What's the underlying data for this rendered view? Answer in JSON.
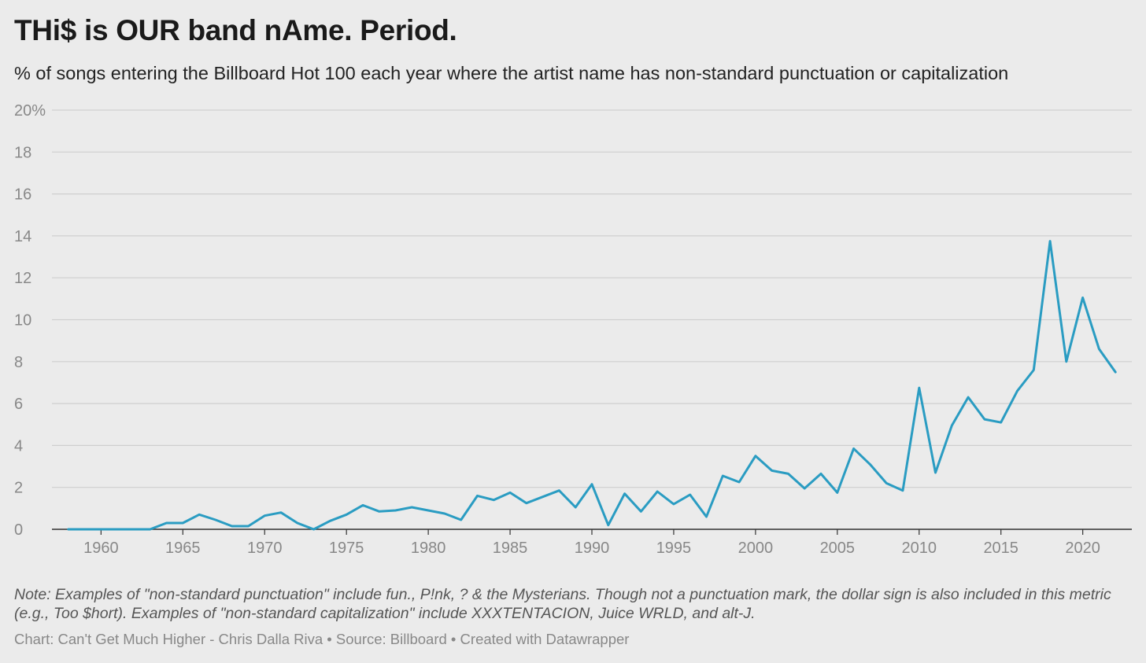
{
  "title": "THi$ is OUR band nAme. Period.",
  "subtitle": "% of songs entering the Billboard Hot 100 each year where the artist name has non-standard punctuation or capitalization",
  "note": "Note: Examples of \"non-standard punctuation\" include fun., P!nk, ? & the Mysterians. Though not a punctuation mark, the dollar sign is also included in this metric (e.g., Too $hort). Examples of \"non-standard capitalization\" include XXXTENTACION, Juice WRLD, and alt-J.",
  "credits": "Chart: Can't Get Much Higher - Chris Dalla Riva • Source: Billboard • Created with Datawrapper",
  "colors": {
    "background": "#ebebeb",
    "line": "#2a9cc2",
    "grid": "#cfcfcf",
    "baseline": "#333333",
    "tick_text": "#888888"
  },
  "chart_data": {
    "type": "line",
    "xlim": [
      1957,
      2023
    ],
    "ylim": [
      0,
      20
    ],
    "grid": true,
    "x_ticks": [
      1960,
      1965,
      1970,
      1975,
      1980,
      1985,
      1990,
      1995,
      2000,
      2005,
      2010,
      2015,
      2020
    ],
    "x_tick_labels": [
      "1960",
      "1965",
      "1970",
      "1975",
      "1980",
      "1985",
      "1990",
      "1995",
      "2000",
      "2005",
      "2010",
      "2015",
      "2020"
    ],
    "y_ticks": [
      0,
      2,
      4,
      6,
      8,
      10,
      12,
      14,
      16,
      18,
      20
    ],
    "y_tick_labels": [
      "0",
      "2",
      "4",
      "6",
      "8",
      "10",
      "12",
      "14",
      "16",
      "18",
      "20%"
    ],
    "x": [
      1958,
      1959,
      1960,
      1961,
      1962,
      1963,
      1964,
      1965,
      1966,
      1967,
      1968,
      1969,
      1970,
      1971,
      1972,
      1973,
      1974,
      1975,
      1976,
      1977,
      1978,
      1979,
      1980,
      1981,
      1982,
      1983,
      1984,
      1985,
      1986,
      1987,
      1988,
      1989,
      1990,
      1991,
      1992,
      1993,
      1994,
      1995,
      1996,
      1997,
      1998,
      1999,
      2000,
      2001,
      2002,
      2003,
      2004,
      2005,
      2006,
      2007,
      2008,
      2009,
      2010,
      2011,
      2012,
      2013,
      2014,
      2015,
      2016,
      2017,
      2018,
      2019,
      2020,
      2021,
      2022
    ],
    "series": [
      {
        "values": [
          0,
          0,
          0,
          0,
          0,
          0,
          0.3,
          0.3,
          0.7,
          0.45,
          0.15,
          0.15,
          0.65,
          0.8,
          0.3,
          0,
          0.4,
          0.7,
          1.15,
          0.85,
          0.9,
          1.05,
          0.9,
          0.75,
          0.45,
          1.6,
          1.4,
          1.75,
          1.25,
          1.55,
          1.85,
          1.05,
          2.15,
          0.2,
          1.7,
          0.85,
          1.8,
          1.2,
          1.65,
          0.6,
          2.55,
          2.25,
          3.5,
          2.8,
          2.65,
          1.95,
          2.65,
          1.75,
          3.85,
          3.1,
          2.2,
          1.85,
          6.75,
          2.7,
          4.95,
          6.3,
          5.25,
          5.1,
          6.6,
          7.6,
          13.75,
          8.0,
          11.05,
          8.6,
          7.5
        ]
      }
    ]
  }
}
